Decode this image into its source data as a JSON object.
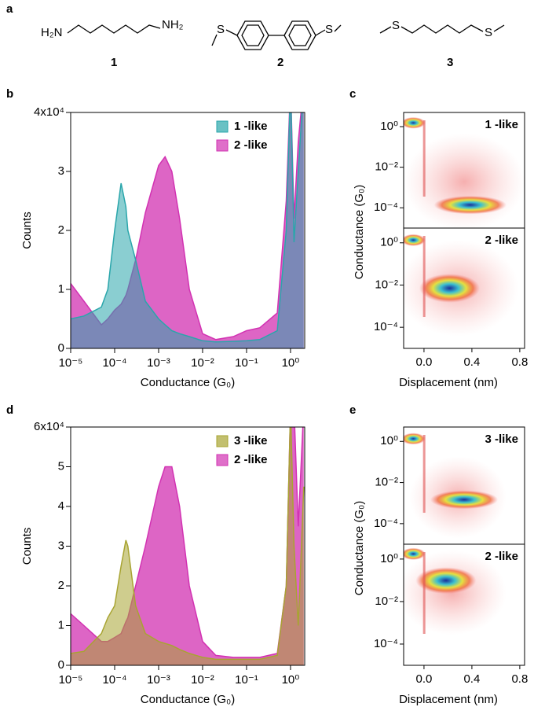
{
  "panels": [
    "a",
    "b",
    "c",
    "d",
    "e"
  ],
  "molecules": [
    {
      "number": "1",
      "groups": [
        "H₂N",
        "NH₂"
      ]
    },
    {
      "number": "2",
      "groups": [
        "S",
        "S"
      ]
    },
    {
      "number": "3",
      "groups": [
        "S",
        "S"
      ]
    }
  ],
  "chart_data": [
    {
      "type": "area",
      "xlabel": "Conductance (G₀)",
      "ylabel": "Counts",
      "log_x": true,
      "legend": "top-right",
      "xlim": [
        1e-05,
        2.1
      ],
      "ylim": [
        0,
        40000
      ],
      "xticks": [
        {
          "value": 1e-05,
          "label": "10⁻⁵"
        },
        {
          "value": 0.0001,
          "label": "10⁻⁴"
        },
        {
          "value": 0.001,
          "label": "10⁻³"
        },
        {
          "value": 0.01,
          "label": "10⁻²"
        },
        {
          "value": 0.1,
          "label": "10⁻¹"
        },
        {
          "value": 1,
          "label": "10⁰"
        }
      ],
      "yticks": [
        0,
        {
          "value": 10000,
          "label": "1"
        },
        {
          "value": 20000,
          "label": "2"
        },
        {
          "value": 30000,
          "label": "3"
        },
        {
          "value": 40000,
          "label": "4x10⁴"
        }
      ],
      "x": [
        1e-05,
        2e-05,
        5e-05,
        7e-05,
        0.0001,
        0.00014,
        0.00018,
        0.0002,
        0.0003,
        0.0005,
        0.001,
        0.0014,
        0.002,
        0.003,
        0.005,
        0.01,
        0.02,
        0.05,
        0.1,
        0.2,
        0.5,
        0.8,
        1,
        1.2,
        1.5,
        2
      ],
      "series": [
        {
          "name": "1 -like",
          "color": "#2aa6ab",
          "values": [
            5000,
            5500,
            7000,
            10000,
            20000,
            28000,
            24000,
            20000,
            15000,
            8000,
            5000,
            4000,
            3000,
            2500,
            2000,
            1300,
            1100,
            1200,
            1300,
            1500,
            3000,
            20000,
            45000,
            18000,
            30000,
            45000
          ]
        },
        {
          "name": "2 -like",
          "color": "#d232b2",
          "values": [
            11000,
            8000,
            4000,
            5000,
            6500,
            7500,
            9000,
            10000,
            15000,
            23000,
            31000,
            32500,
            30000,
            22000,
            10000,
            2500,
            1500,
            2000,
            3000,
            3500,
            6000,
            25000,
            45000,
            22000,
            35000,
            45000
          ]
        }
      ]
    },
    {
      "type": "heatmap",
      "label": "1 -like",
      "ylabel": "Conductance (G₀)",
      "log_y": true,
      "xlim": [
        -0.17,
        0.84
      ],
      "ylim": [
        1e-05,
        5
      ],
      "yticks": [
        {
          "value": 1,
          "label": "10⁰"
        },
        {
          "value": 0.01,
          "label": "10⁻²"
        },
        {
          "value": 0.0001,
          "label": "10⁻⁴"
        }
      ]
    },
    {
      "type": "heatmap",
      "label": "2 -like",
      "xlabel": "Displacement (nm)",
      "log_y": true,
      "xlim": [
        -0.17,
        0.84
      ],
      "ylim": [
        1e-05,
        5
      ],
      "xticks": [
        {
          "value": 0,
          "label": "0.0"
        },
        0.4,
        {
          "value": 0.8,
          "label": "0.8"
        }
      ],
      "yticks": [
        {
          "value": 1,
          "label": "10⁰"
        },
        {
          "value": 0.01,
          "label": "10⁻²"
        },
        {
          "value": 0.0001,
          "label": "10⁻⁴"
        }
      ]
    },
    {
      "type": "area",
      "xlabel": "Conductance (G₀)",
      "ylabel": "Counts",
      "log_x": true,
      "legend": "top-right",
      "xlim": [
        1e-05,
        2.1
      ],
      "ylim": [
        0,
        60000
      ],
      "xticks": [
        {
          "value": 1e-05,
          "label": "10⁻⁵"
        },
        {
          "value": 0.0001,
          "label": "10⁻⁴"
        },
        {
          "value": 0.001,
          "label": "10⁻³"
        },
        {
          "value": 0.01,
          "label": "10⁻²"
        },
        {
          "value": 0.1,
          "label": "10⁻¹"
        },
        {
          "value": 1,
          "label": "10⁰"
        }
      ],
      "yticks": [
        0,
        {
          "value": 10000,
          "label": "1"
        },
        {
          "value": 20000,
          "label": "2"
        },
        {
          "value": 30000,
          "label": "3"
        },
        {
          "value": 40000,
          "label": "4"
        },
        {
          "value": 50000,
          "label": "5"
        },
        {
          "value": 60000,
          "label": "6x10⁴"
        }
      ],
      "x": [
        1e-05,
        2e-05,
        5e-05,
        7e-05,
        0.0001,
        0.00014,
        0.00018,
        0.0002,
        0.0003,
        0.0005,
        0.001,
        0.0014,
        0.002,
        0.003,
        0.005,
        0.01,
        0.02,
        0.05,
        0.1,
        0.2,
        0.5,
        0.8,
        1,
        1.2,
        1.5,
        2
      ],
      "series": [
        {
          "name": "3 -like",
          "color": "#a8a432",
          "values": [
            3000,
            3500,
            8000,
            12000,
            15000,
            25000,
            31500,
            30000,
            15000,
            8000,
            6000,
            5500,
            5000,
            4000,
            3000,
            2000,
            1500,
            1500,
            1500,
            1500,
            2500,
            20000,
            65000,
            30000,
            10000,
            45000
          ]
        },
        {
          "name": "2 -like",
          "color": "#d232b2",
          "values": [
            13000,
            10000,
            6000,
            6000,
            7000,
            8000,
            11000,
            12000,
            20000,
            30000,
            45000,
            50000,
            50000,
            40000,
            20000,
            6000,
            2500,
            2000,
            2000,
            2000,
            3000,
            20000,
            65000,
            65000,
            35000,
            65000
          ]
        }
      ]
    },
    {
      "type": "heatmap",
      "label": "3 -like",
      "ylabel": "Conductance (G₀)",
      "log_y": true,
      "xlim": [
        -0.17,
        0.84
      ],
      "ylim": [
        1e-05,
        5
      ],
      "yticks": [
        {
          "value": 1,
          "label": "10⁰"
        },
        {
          "value": 0.01,
          "label": "10⁻²"
        },
        {
          "value": 0.0001,
          "label": "10⁻⁴"
        }
      ]
    },
    {
      "type": "heatmap",
      "label": "2 -like",
      "xlabel": "Displacement (nm)",
      "log_y": true,
      "xlim": [
        -0.17,
        0.84
      ],
      "ylim": [
        1e-05,
        5
      ],
      "xticks": [
        {
          "value": 0,
          "label": "0.0"
        },
        0.4,
        {
          "value": 0.8,
          "label": "0.8"
        }
      ],
      "yticks": [
        {
          "value": 1,
          "label": "10⁰"
        },
        {
          "value": 0.01,
          "label": "10⁻²"
        },
        {
          "value": 0.0001,
          "label": "10⁻⁴"
        }
      ]
    }
  ]
}
